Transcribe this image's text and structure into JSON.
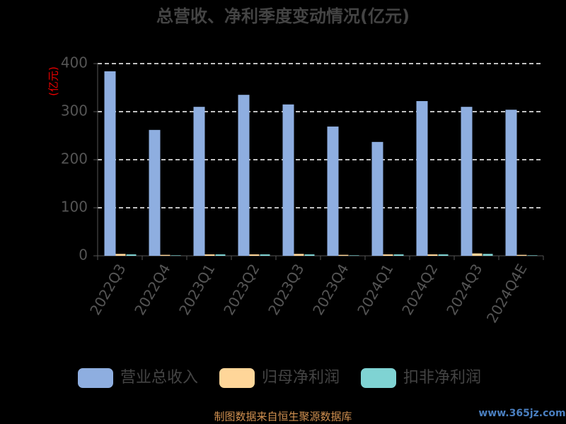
{
  "chart_data": {
    "type": "bar",
    "title": "总营收、净利季度变动情况(亿元)",
    "y_label": "(亿元)",
    "categories": [
      "2022Q3",
      "2022Q4",
      "2023Q1",
      "2023Q2",
      "2023Q3",
      "2023Q4",
      "2024Q1",
      "2024Q2",
      "2024Q3",
      "2024Q4E"
    ],
    "series": [
      {
        "name": "营业总收入",
        "color": "#8eaee0",
        "values": [
          384,
          262,
          310,
          335,
          315,
          269,
          237,
          322,
          310,
          304
        ]
      },
      {
        "name": "归母净利润",
        "color": "#ffd699",
        "values": [
          4,
          2,
          3,
          3,
          4,
          2,
          3,
          3,
          5,
          2
        ]
      },
      {
        "name": "扣非净利润",
        "color": "#7fd3d3",
        "values": [
          3,
          1,
          3,
          3,
          3,
          1,
          3,
          3,
          4,
          1
        ]
      }
    ],
    "ylim": [
      0,
      400
    ],
    "yticks": [
      0,
      100,
      200,
      300,
      400
    ],
    "grid": true,
    "legend": "bottom",
    "source": "制图数据来自恒生聚源数据库",
    "watermark": "www.365jz.com"
  }
}
